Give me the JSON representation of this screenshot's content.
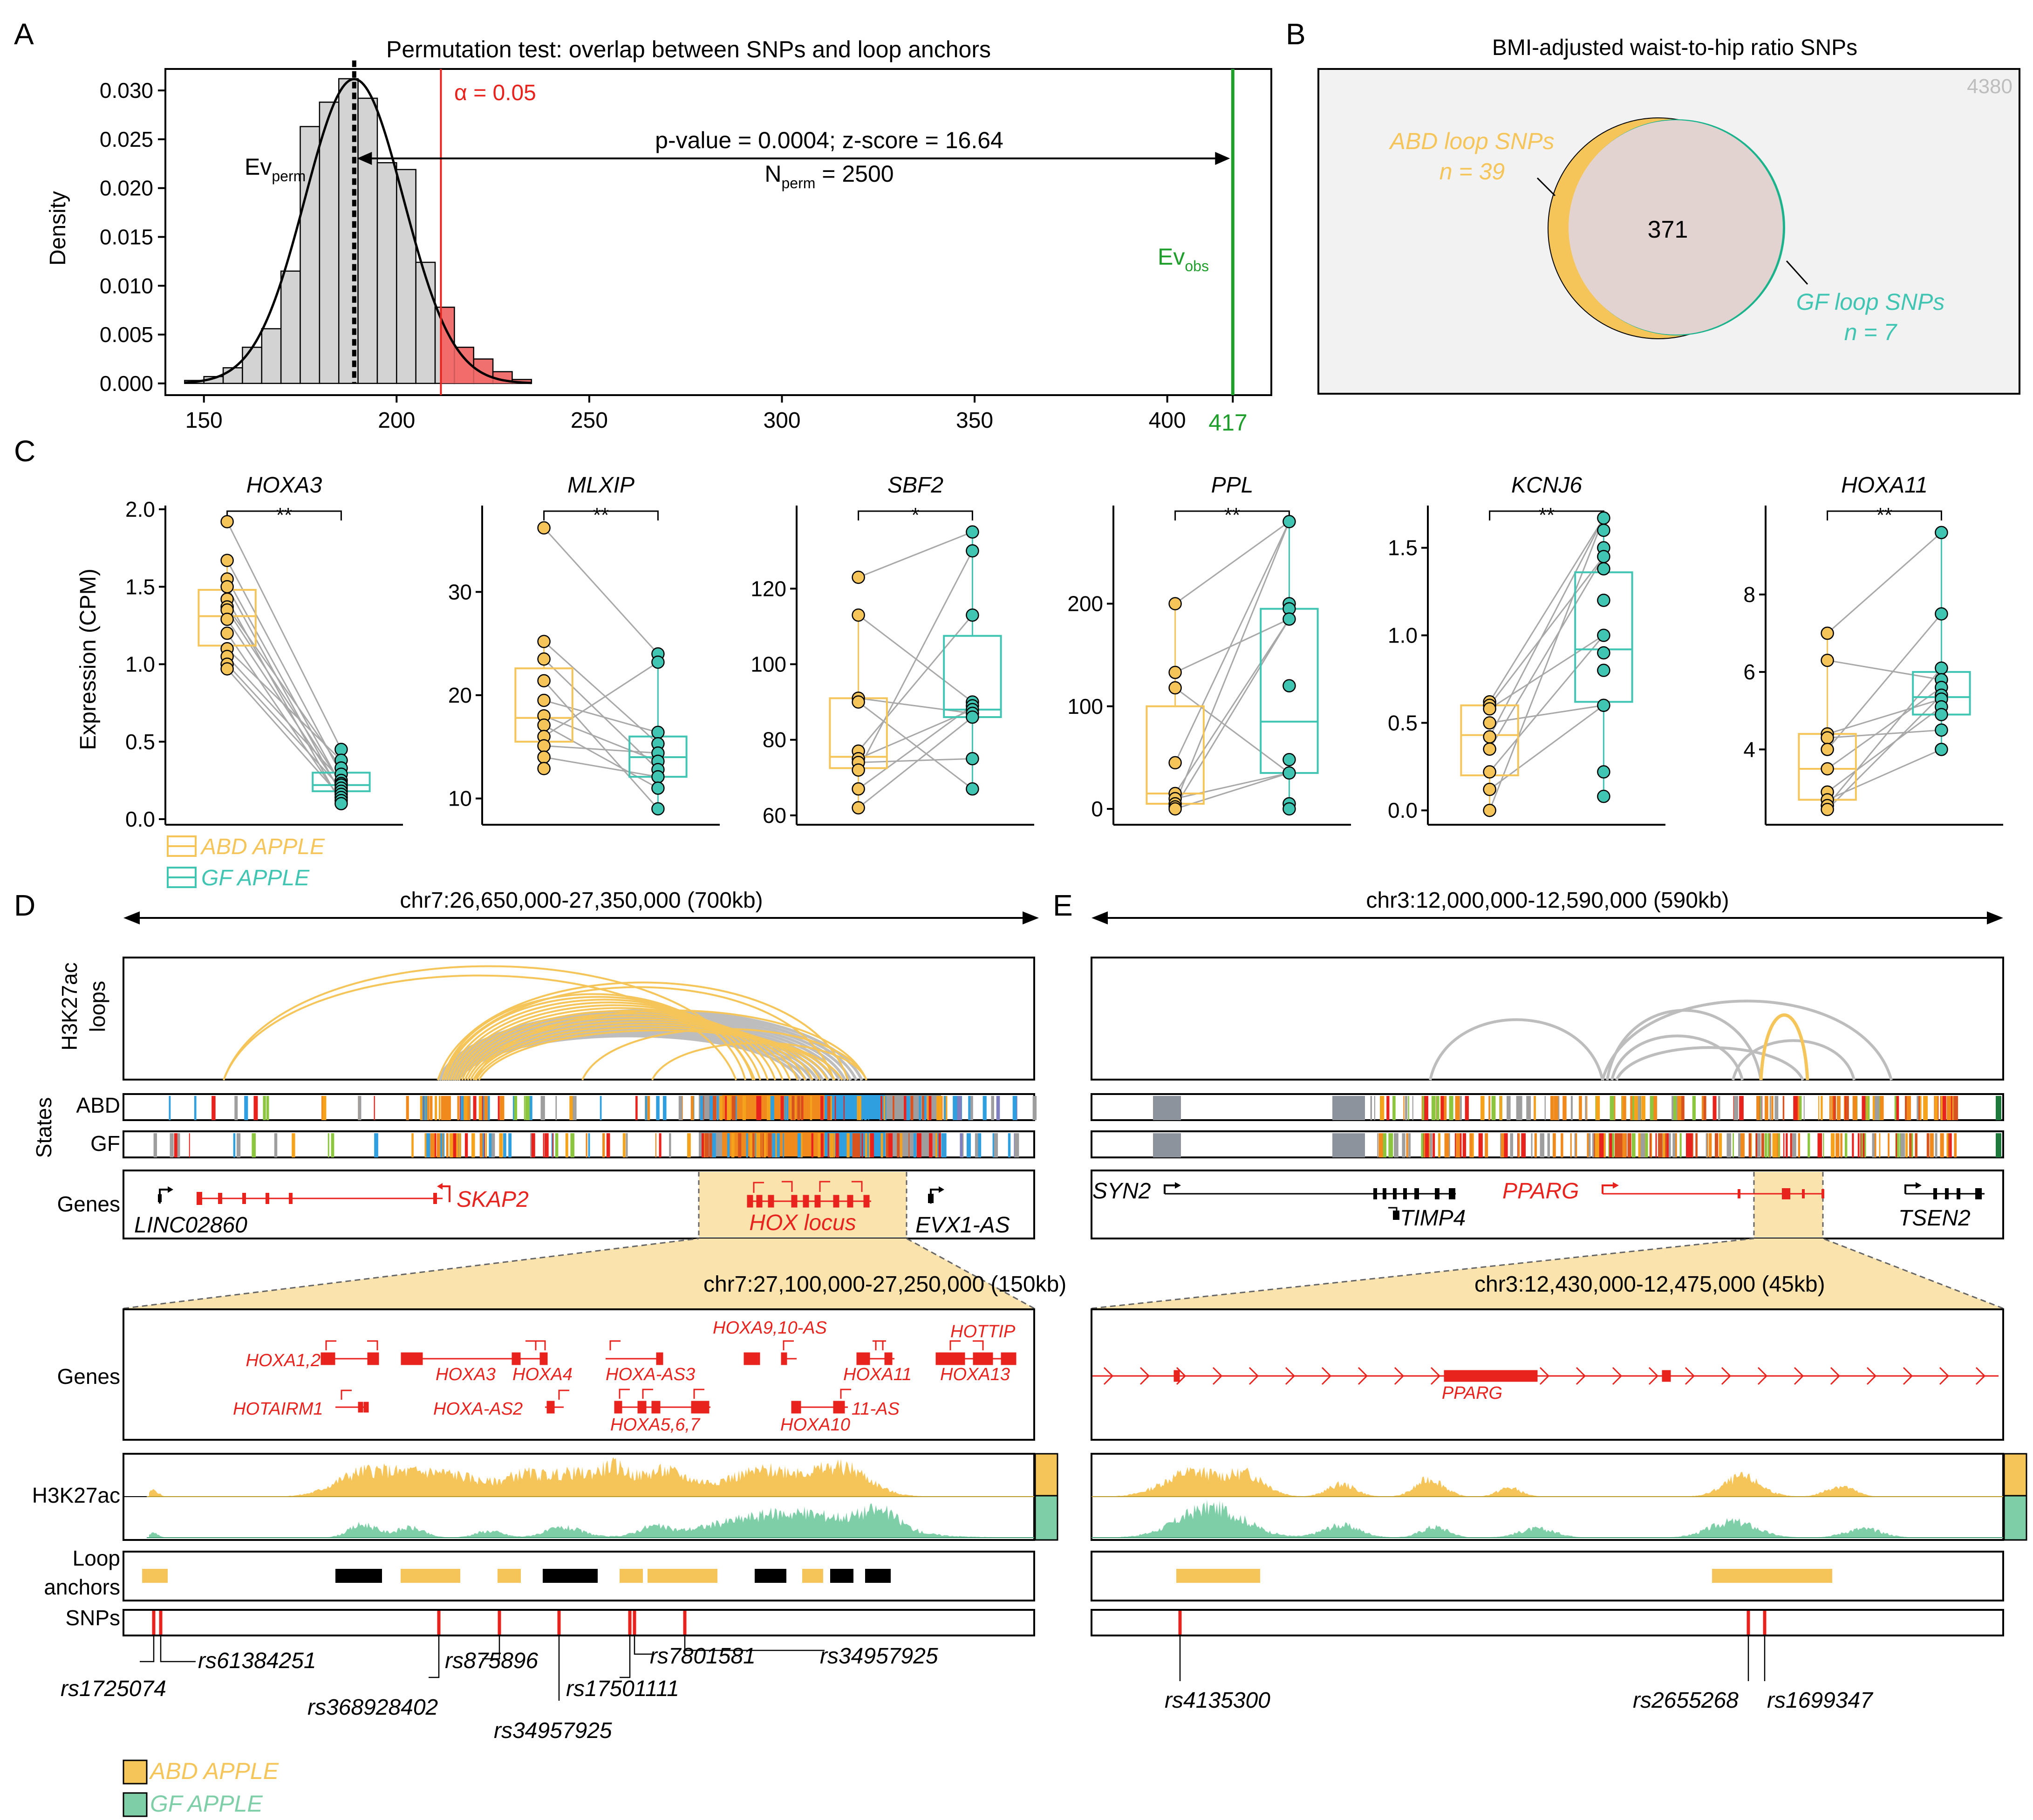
{
  "colors": {
    "abd": "#F5C55A",
    "gf": "#40C5B3",
    "gf_track": "#7ECFA8",
    "red": "#E8231E",
    "green": "#1E9E2A",
    "grey": "#C9C9C9",
    "gene_red": "#E8231E"
  },
  "panelA": {
    "letter": "A",
    "title": "Permutation test: overlap between SNPs and loop anchors",
    "ylabel": "Density",
    "alpha_label": "α = 0.05",
    "ev_perm_main": "Ev",
    "ev_perm_sub": "perm",
    "ev_obs_main": "Ev",
    "ev_obs_sub": "obs",
    "stat_line1": "p-value = 0.0004; z-score = 16.64",
    "stat_line2_main": "N",
    "stat_line2_sub": "perm",
    "stat_line2_rest": " = 2500",
    "obs_value_label": "417"
  },
  "chart_data": [
    {
      "id": "hist",
      "type": "bar",
      "title": "Permutation test: overlap between SNPs and loop anchors",
      "xlabel": "",
      "ylabel": "Density",
      "xlim": [
        140,
        427
      ],
      "ylim": [
        -0.0012,
        0.0322
      ],
      "xticks": [
        150,
        200,
        250,
        300,
        350,
        400
      ],
      "yticks": [
        "0.000",
        "0.005",
        "0.010",
        "0.015",
        "0.020",
        "0.025",
        "0.030"
      ],
      "bin_width": 5,
      "bins": [
        [
          145,
          0.0003
        ],
        [
          150,
          0.0007
        ],
        [
          155,
          0.0016
        ],
        [
          160,
          0.0037
        ],
        [
          165,
          0.0056
        ],
        [
          170,
          0.0115
        ],
        [
          175,
          0.0263
        ],
        [
          180,
          0.0288
        ],
        [
          185,
          0.0312
        ],
        [
          190,
          0.0292
        ],
        [
          195,
          0.0226
        ],
        [
          200,
          0.0219
        ],
        [
          205,
          0.0124
        ],
        [
          210,
          0.0078
        ],
        [
          215,
          0.0037
        ],
        [
          220,
          0.0025
        ],
        [
          225,
          0.0012
        ],
        [
          230,
          0.0004
        ]
      ],
      "normal_mean": 189,
      "normal_sd": 12.8,
      "ev_perm": 189,
      "alpha_threshold": 211.5,
      "ev_obs": 417
    },
    {
      "id": "HOXA3",
      "type": "box",
      "gene": "HOXA3",
      "sig": "**",
      "yticks": [
        "0.0",
        "0.5",
        "1.0",
        "1.5",
        "2.0"
      ],
      "ylim": [
        0,
        2
      ],
      "abd": {
        "box": [
          1.12,
          1.31,
          1.48
        ],
        "whisk": [
          0.96,
          1.67
        ],
        "points": [
          1.92,
          1.67,
          1.55,
          1.5,
          1.42,
          1.37,
          1.35,
          1.29,
          1.2,
          1.1,
          1.05,
          1.0,
          0.97
        ]
      },
      "gf": {
        "box": [
          0.18,
          0.22,
          0.3
        ],
        "whisk": [
          0.1,
          0.45
        ],
        "points": [
          0.45,
          0.38,
          0.33,
          0.29,
          0.25,
          0.23,
          0.22,
          0.2,
          0.18,
          0.16,
          0.14,
          0.12,
          0.1
        ]
      }
    },
    {
      "id": "MLXIP",
      "type": "box",
      "gene": "MLXIP",
      "sig": "**",
      "yticks": [
        "10",
        "20",
        "30"
      ],
      "ylim": [
        8,
        38
      ],
      "abd": {
        "box": [
          15.5,
          17.8,
          22.6
        ],
        "whisk": [
          12.9,
          25.2
        ],
        "points": [
          36.2,
          25.2,
          23.5,
          21.4,
          19.5,
          18.0,
          17.1,
          16.0,
          15.1,
          14.0,
          12.9
        ]
      },
      "gf": {
        "box": [
          12.1,
          14.0,
          16.0
        ],
        "whisk": [
          9.0,
          23.2
        ],
        "points": [
          24.0,
          23.2,
          16.4,
          15.3,
          14.4,
          13.6,
          12.8,
          12.1,
          11.0,
          9.0
        ]
      }
    },
    {
      "id": "SBF2",
      "type": "box",
      "gene": "SBF2",
      "sig": "*",
      "yticks": [
        "60",
        "80",
        "100",
        "120"
      ],
      "ylim": [
        59,
        141
      ],
      "abd": {
        "box": [
          72.5,
          75.5,
          91
        ],
        "whisk": [
          62,
          113
        ],
        "points": [
          123,
          113,
          91,
          90,
          77,
          75,
          74,
          72,
          67,
          62
        ]
      },
      "gf": {
        "box": [
          86,
          88,
          107.5
        ],
        "whisk": [
          67,
          135
        ],
        "points": [
          135,
          130,
          113,
          90,
          89,
          88,
          87,
          86,
          75,
          67
        ]
      }
    },
    {
      "id": "PPL",
      "type": "box",
      "gene": "PPL",
      "sig": "**",
      "yticks": [
        "0",
        "100",
        "200"
      ],
      "ylim": [
        -10,
        292
      ],
      "abd": {
        "box": [
          5,
          15,
          100
        ],
        "whisk": [
          0,
          200
        ],
        "points": [
          200,
          133,
          118,
          45,
          15,
          10,
          5,
          2,
          0
        ]
      },
      "gf": {
        "box": [
          35,
          85,
          195
        ],
        "whisk": [
          0,
          280
        ],
        "points": [
          280,
          200,
          195,
          185,
          120,
          48,
          35,
          5,
          0
        ]
      }
    },
    {
      "id": "KCNJ6",
      "type": "box",
      "gene": "KCNJ6",
      "sig": "**",
      "yticks": [
        "0.0",
        "0.5",
        "1.0",
        "1.5"
      ],
      "ylim": [
        -0.05,
        1.72
      ],
      "abd": {
        "box": [
          0.2,
          0.43,
          0.6
        ],
        "whisk": [
          0.0,
          0.63
        ],
        "points": [
          0.62,
          0.6,
          0.58,
          0.5,
          0.42,
          0.35,
          0.22,
          0.12,
          0.0
        ]
      },
      "gf": {
        "box": [
          0.62,
          0.92,
          1.36
        ],
        "whisk": [
          0.08,
          1.67
        ],
        "points": [
          1.67,
          1.6,
          1.5,
          1.45,
          1.38,
          1.2,
          1.0,
          0.9,
          0.8,
          0.6,
          0.22,
          0.08
        ]
      }
    },
    {
      "id": "HOXA11",
      "type": "box",
      "gene": "HOXA11",
      "sig": "**",
      "yticks": [
        "4",
        "6",
        "8"
      ],
      "ylim": [
        2.2,
        10.2
      ],
      "abd": {
        "box": [
          2.7,
          3.5,
          4.4
        ],
        "whisk": [
          2.45,
          7.0
        ],
        "points": [
          7.0,
          6.3,
          4.4,
          4.3,
          4.0,
          3.5,
          2.9,
          2.7,
          2.55,
          2.45
        ]
      },
      "gf": {
        "box": [
          4.9,
          5.35,
          6.0
        ],
        "whisk": [
          4.0,
          9.6
        ],
        "points": [
          9.6,
          7.5,
          6.1,
          5.8,
          5.6,
          5.4,
          5.3,
          5.1,
          4.9,
          4.5,
          4.0
        ]
      }
    }
  ],
  "panelB": {
    "letter": "B",
    "title": "BMI-adjusted waist-to-hip ratio SNPs",
    "total": "4380",
    "overlap": "371",
    "abd_name": "ABD loop SNPs",
    "abd_n": "n = 39",
    "gf_name": "GF loop SNPs",
    "gf_n": "n = 7"
  },
  "panelC": {
    "letter": "C",
    "ylabel": "Expression (CPM)",
    "legend_abd": "ABD APPLE",
    "legend_gf": "GF APPLE"
  },
  "panelD": {
    "letter": "D",
    "region": "chr7:26,650,000-27,350,000 (700kb)",
    "zoom_region": "chr7:27,100,000-27,250,000 (150kb)",
    "row_loops_1": "H3K27ac",
    "row_loops_2": "loops",
    "row_states": "States",
    "row_abd": "ABD",
    "row_gf": "GF",
    "row_genes": "Genes",
    "genes_top": [
      "LINC02860",
      "SKAP2",
      "HOX locus",
      "EVX1-AS"
    ],
    "genes_zoom": [
      "HOXA1,2",
      "HOXA3",
      "HOXA4",
      "HOXA-AS3",
      "HOXA9,10-AS",
      "HOXA11",
      "HOTTIP",
      "HOXA13",
      "HOTAIRM1",
      "HOXA-AS2",
      "HOXA5,6,7",
      "HOXA10",
      "11-AS"
    ],
    "row_h3k27ac": "H3K27ac",
    "row_anchor_1": "Loop",
    "row_anchor_2": "anchors",
    "row_snps": "SNPs",
    "snps": [
      "rs1725074",
      "rs61384251",
      "rs368928402",
      "rs875896",
      "rs34957925",
      "rs17501111",
      "rs7801581",
      "rs34957925"
    ]
  },
  "panelE": {
    "letter": "E",
    "region": "chr3:12,000,000-12,590,000 (590kb)",
    "zoom_region": "chr3:12,430,000-12,475,000 (45kb)",
    "genes_top": [
      "SYN2",
      "TIMP4",
      "PPARG",
      "TSEN2"
    ],
    "genes_zoom": [
      "PPARG"
    ],
    "snps": [
      "rs4135300",
      "rs2655268",
      "rs1699347"
    ]
  },
  "legend_bottom": {
    "abd": "ABD APPLE",
    "gf": "GF APPLE"
  }
}
